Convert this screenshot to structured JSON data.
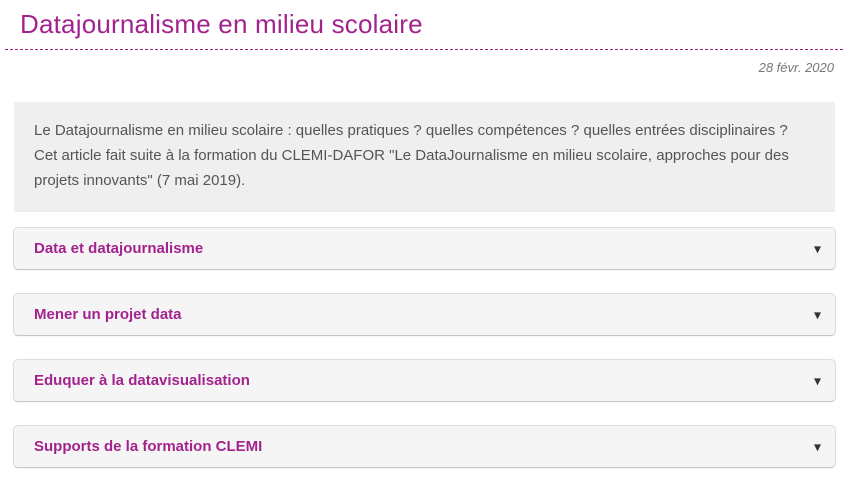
{
  "page": {
    "title": "Datajournalisme en milieu scolaire",
    "date": "28 févr. 2020"
  },
  "intro": {
    "text": "Le Datajournalisme en milieu scolaire : quelles pratiques ? quelles compétences ? quelles entrées disciplinaires ? Cet article fait suite à la formation du CLEMI-DAFOR \"Le DataJournalisme en milieu scolaire, approches pour des projets innovants\" (7 mai 2019)."
  },
  "accordion": {
    "items": [
      {
        "label": "Data et datajournalisme"
      },
      {
        "label": "Mener un projet data"
      },
      {
        "label": "Eduquer à la datavisualisation"
      },
      {
        "label": "Supports de la formation CLEMI"
      }
    ]
  },
  "icons": {
    "caret_glyph": "▾",
    "caret_name": "caret-down-icon"
  },
  "colors": {
    "accent": "#a3238e",
    "intro_background": "#efefef",
    "panel_background": "#f5f5f5",
    "panel_border": "#dcdcdc",
    "body_text": "#555555",
    "date_text": "#777777",
    "caret_color": "#333333"
  }
}
